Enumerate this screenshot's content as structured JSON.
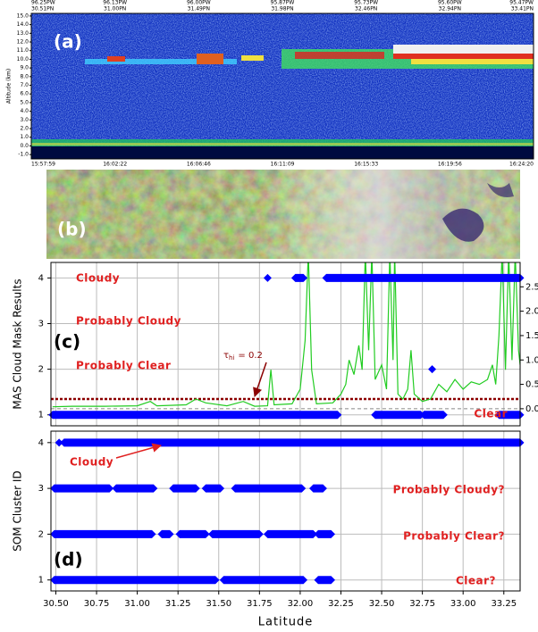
{
  "panel_a": {
    "label": "(a)",
    "ylabel": "Altitude (km)",
    "ylim": [
      -1.5,
      15.3
    ],
    "yticks": [
      {
        "value": 15,
        "label": "15.0"
      },
      {
        "value": 14,
        "label": "14.0"
      },
      {
        "value": 13,
        "label": "13.0"
      },
      {
        "value": 12,
        "label": "12.0"
      },
      {
        "value": 11,
        "label": "11.0"
      },
      {
        "value": 10,
        "label": "10.0"
      },
      {
        "value": 9,
        "label": "9.0"
      },
      {
        "value": 8,
        "label": "8.0"
      },
      {
        "value": 7,
        "label": "7.0"
      },
      {
        "value": 6,
        "label": "6.0"
      },
      {
        "value": 5,
        "label": "5.0"
      },
      {
        "value": 4,
        "label": "4.0"
      },
      {
        "value": 3,
        "label": "3.0"
      },
      {
        "value": 2,
        "label": "2.0"
      },
      {
        "value": 1,
        "label": "1.0"
      },
      {
        "value": 0,
        "label": "0.0"
      },
      {
        "value": -1,
        "label": "-1.0"
      }
    ],
    "top_labels": [
      [
        "96.25PW",
        "30.51PN"
      ],
      [
        "96.13PW",
        "31.00PN"
      ],
      [
        "96.00PW",
        "31.49PN"
      ],
      [
        "95.87PW",
        "31.98PN"
      ],
      [
        "95.73PW",
        "32.46PN"
      ],
      [
        "95.60PW",
        "32.94PN"
      ],
      [
        "95.47PW",
        "33.41PN"
      ]
    ],
    "times": [
      "15:57:59",
      "16:02:22",
      "16:06:46",
      "16:11:09",
      "16:15:33",
      "16:19:56",
      "16:24:20"
    ]
  },
  "panel_b": {
    "label": "(b)"
  },
  "chart_data": [
    {
      "type": "line",
      "panel_label": "(c)",
      "ylabel": "MAS Cloud Mask Results",
      "xlim": [
        30.47,
        33.35
      ],
      "xticks": [
        30.5,
        30.75,
        31,
        31.25,
        31.5,
        31.75,
        32,
        32.25,
        32.5,
        32.75,
        33,
        33.25
      ],
      "ylim": [
        0.76,
        4.34
      ],
      "yticks": [
        1,
        2,
        3,
        4
      ],
      "y2lim": [
        -0.35,
        3.0
      ],
      "y2ticks": [
        {
          "value": 0,
          "label": "0.0"
        },
        {
          "value": 0.5,
          "label": "0.5"
        },
        {
          "value": 1,
          "label": "1.0"
        },
        {
          "value": 1.5,
          "label": "1.5"
        },
        {
          "value": 2,
          "label": "2.0"
        },
        {
          "value": 2.5,
          "label": "2.5"
        }
      ],
      "grid": true,
      "class_labels": [
        "Cloudy",
        "Probably Cloudy",
        "Probably Clear",
        "Clear"
      ],
      "masks": [
        {
          "y": 4,
          "color": "#0000ff",
          "ranges": [
            [
              31.8,
              31.8
            ],
            [
              31.97,
              32.02
            ],
            [
              32.16,
              33.35
            ]
          ]
        },
        {
          "y": 2,
          "color": "#0000ff",
          "ranges": [
            [
              32.81,
              32.81
            ]
          ]
        },
        {
          "y": 1,
          "color": "#0000ff",
          "ranges": [
            [
              30.48,
              32.23
            ],
            [
              32.46,
              32.74
            ],
            [
              32.76,
              32.88
            ],
            [
              33.22,
              33.35
            ]
          ]
        }
      ],
      "threshold": {
        "value": 0.2,
        "symbol": "τ",
        "subscript": "hi",
        "label": "= 0.2",
        "color": "#8b0000"
      },
      "series": [
        {
          "color": "#22cc22",
          "axis": "y2",
          "x": [
            30.48,
            30.6,
            30.8,
            31.0,
            31.08,
            31.12,
            31.3,
            31.36,
            31.42,
            31.55,
            31.65,
            31.72,
            31.8,
            31.82,
            31.84,
            31.95,
            32.0,
            32.03,
            32.05,
            32.07,
            32.1,
            32.2,
            32.25,
            32.28,
            32.3,
            32.33,
            32.36,
            32.38,
            32.4,
            32.42,
            32.44,
            32.46,
            32.5,
            32.53,
            32.55,
            32.57,
            32.58,
            32.6,
            32.63,
            32.66,
            32.68,
            32.7,
            32.75,
            32.8,
            32.85,
            32.9,
            32.95,
            33.0,
            33.05,
            33.1,
            33.15,
            33.18,
            33.2,
            33.22,
            33.24,
            33.26,
            33.28,
            33.3,
            33.32,
            33.34,
            33.35
          ],
          "values": [
            0.04,
            0.05,
            0.05,
            0.06,
            0.15,
            0.06,
            0.08,
            0.2,
            0.12,
            0.06,
            0.15,
            0.05,
            0.06,
            0.8,
            0.08,
            0.1,
            0.4,
            1.4,
            3.2,
            0.8,
            0.1,
            0.12,
            0.3,
            0.5,
            1.0,
            0.7,
            1.3,
            0.8,
            3.2,
            1.2,
            3.2,
            0.6,
            0.9,
            0.4,
            3.2,
            1.0,
            3.2,
            0.3,
            0.2,
            0.4,
            1.2,
            0.3,
            0.15,
            0.2,
            0.5,
            0.35,
            0.6,
            0.4,
            0.55,
            0.5,
            0.6,
            0.9,
            0.5,
            1.5,
            3.2,
            0.8,
            3.2,
            1.0,
            3.2,
            1.2,
            0.9
          ]
        }
      ]
    },
    {
      "type": "mask",
      "panel_label": "(d)",
      "ylabel": "SOM Cluster ID",
      "xlabel": "Latitude",
      "xlim": [
        30.47,
        33.35
      ],
      "xticks": [
        {
          "value": 30.5,
          "label": "30.50"
        },
        30.75,
        {
          "value": 31,
          "label": "31.00"
        },
        31.25,
        {
          "value": 31.5,
          "label": "31.50"
        },
        31.75,
        {
          "value": 32,
          "label": "32.00"
        },
        32.25,
        {
          "value": 32.5,
          "label": "32.50"
        },
        32.75,
        {
          "value": 33,
          "label": "33.00"
        },
        33.25
      ],
      "ylim": [
        0.76,
        4.25
      ],
      "yticks": [
        1,
        2,
        3,
        4
      ],
      "grid": true,
      "class_labels": [
        "Cloudy",
        "Probably Cloudy?",
        "Probably Clear?",
        "Clear?"
      ],
      "masks": [
        {
          "y": 4,
          "color": "#0000ff",
          "ranges": [
            [
              30.52,
              30.52
            ],
            [
              30.55,
              33.35
            ]
          ]
        },
        {
          "y": 3,
          "color": "#0000ff",
          "ranges": [
            [
              30.49,
              30.83
            ],
            [
              30.87,
              31.1
            ],
            [
              31.22,
              31.36
            ],
            [
              31.42,
              31.51
            ],
            [
              31.6,
              32.01
            ],
            [
              32.08,
              32.14
            ]
          ]
        },
        {
          "y": 2,
          "color": "#0000ff",
          "ranges": [
            [
              30.49,
              31.09
            ],
            [
              31.15,
              31.2
            ],
            [
              31.26,
              31.42
            ],
            [
              31.46,
              31.75
            ],
            [
              31.8,
              32.08
            ],
            [
              32.11,
              32.19
            ]
          ]
        },
        {
          "y": 1,
          "color": "#0000ff",
          "ranges": [
            [
              30.49,
              31.48
            ],
            [
              31.53,
              32.02
            ],
            [
              32.11,
              32.19
            ]
          ]
        }
      ]
    }
  ]
}
